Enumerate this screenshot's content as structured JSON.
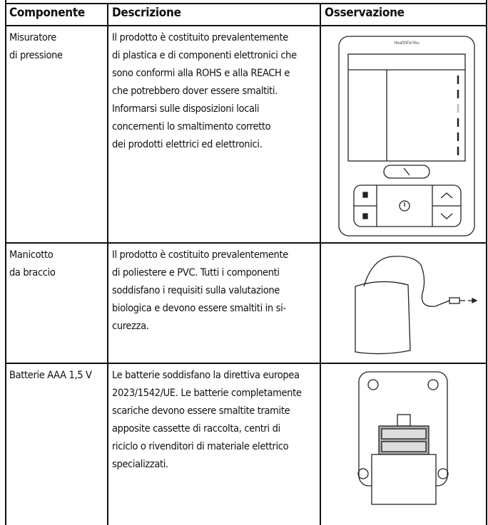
{
  "table": {
    "header": [
      "Componente",
      "Descrizione",
      "Osservazione"
    ],
    "rows": [
      {
        "component": [
          "Misuratore",
          "di pressione"
        ],
        "description": [
          "Il prodotto è costituito prevalentemente",
          "di plastica e di componenti elettronici che",
          "sono conformi alla ROHS e alla REACH e",
          "che potrebbero dover essere smaltiti.",
          "Informarsi sulle disposizioni locali",
          "concernenti lo smaltimento corretto",
          "dei prodotti elettrici ed elettronici."
        ],
        "image_text": "HealthForYou"
      },
      {
        "component": [
          "Manicotto",
          "da braccio"
        ],
        "description": [
          "Il prodotto è costituito prevalentemente",
          "di poliestere e PVC. Tutti i componenti",
          "soddisfano i requisiti sulla valutazione",
          "biologica e devono essere smaltiti in si-",
          "curezza."
        ]
      },
      {
        "component": [
          "Batterie AAA 1,5 V"
        ],
        "description": [
          "Le batterie soddisfano la direttiva europea",
          "2023/1542/UE. Le batterie completamente",
          "scariche devono essere smaltite tramite",
          "apposite cassette di raccolta, centri di",
          "riciclo o rivenditori di materiale elettrico",
          "specializzati."
        ]
      }
    ]
  }
}
